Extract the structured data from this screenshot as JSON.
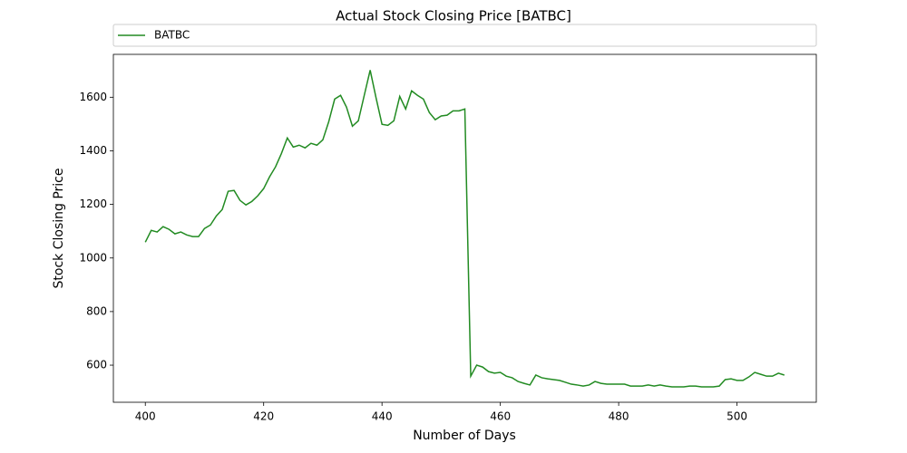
{
  "chart_data": {
    "type": "line",
    "title": "Actual Stock Closing Price [BATBC]",
    "xlabel": "Number of Days",
    "ylabel": "Stock Closing Price",
    "legend": "top",
    "x": [
      400,
      401,
      402,
      403,
      404,
      405,
      406,
      407,
      408,
      409,
      410,
      411,
      412,
      413,
      414,
      415,
      416,
      417,
      418,
      419,
      420,
      421,
      422,
      423,
      424,
      425,
      426,
      427,
      428,
      429,
      430,
      431,
      432,
      433,
      434,
      435,
      436,
      437,
      438,
      439,
      440,
      441,
      442,
      443,
      444,
      445,
      446,
      447,
      448,
      449,
      450,
      451,
      452,
      453,
      454,
      455,
      456,
      457,
      458,
      459,
      460,
      461,
      462,
      463,
      464,
      465,
      466,
      467,
      468,
      469,
      470,
      471,
      472,
      473,
      474,
      475,
      476,
      477,
      478,
      479,
      480,
      481,
      482,
      483,
      484,
      485,
      486,
      487,
      488,
      489,
      490,
      491,
      492,
      493,
      494,
      495,
      496,
      497,
      498,
      499,
      500,
      501,
      502,
      503,
      504,
      505,
      506,
      507,
      508
    ],
    "series": [
      {
        "name": "BATBC",
        "color": "#228b22",
        "values": [
          1059,
          1103,
          1097,
          1117,
          1107,
          1090,
          1097,
          1086,
          1080,
          1080,
          1110,
          1123,
          1157,
          1181,
          1249,
          1252,
          1215,
          1198,
          1211,
          1232,
          1259,
          1303,
          1340,
          1390,
          1448,
          1414,
          1421,
          1411,
          1428,
          1421,
          1441,
          1509,
          1593,
          1607,
          1563,
          1492,
          1512,
          1607,
          1701,
          1597,
          1499,
          1495,
          1512,
          1603,
          1556,
          1624,
          1607,
          1593,
          1543,
          1516,
          1530,
          1533,
          1549,
          1549,
          1556,
          559,
          600,
          593,
          576,
          570,
          573,
          559,
          553,
          539,
          532,
          526,
          563,
          553,
          549,
          546,
          543,
          536,
          529,
          526,
          522,
          526,
          539,
          532,
          529,
          529,
          529,
          529,
          522,
          522,
          522,
          526,
          522,
          526,
          522,
          519,
          519,
          519,
          522,
          522,
          519,
          519,
          519,
          522,
          546,
          549,
          543,
          543,
          556,
          573,
          566,
          559,
          559,
          570,
          563
        ]
      }
    ],
    "xlim": [
      394.6,
      513.4
    ],
    "xticks": [
      400,
      420,
      440,
      460,
      480,
      500
    ],
    "ylim": [
      461.5,
      1760
    ],
    "yticks": [
      600,
      800,
      1000,
      1200,
      1400,
      1600
    ],
    "grid": false
  }
}
